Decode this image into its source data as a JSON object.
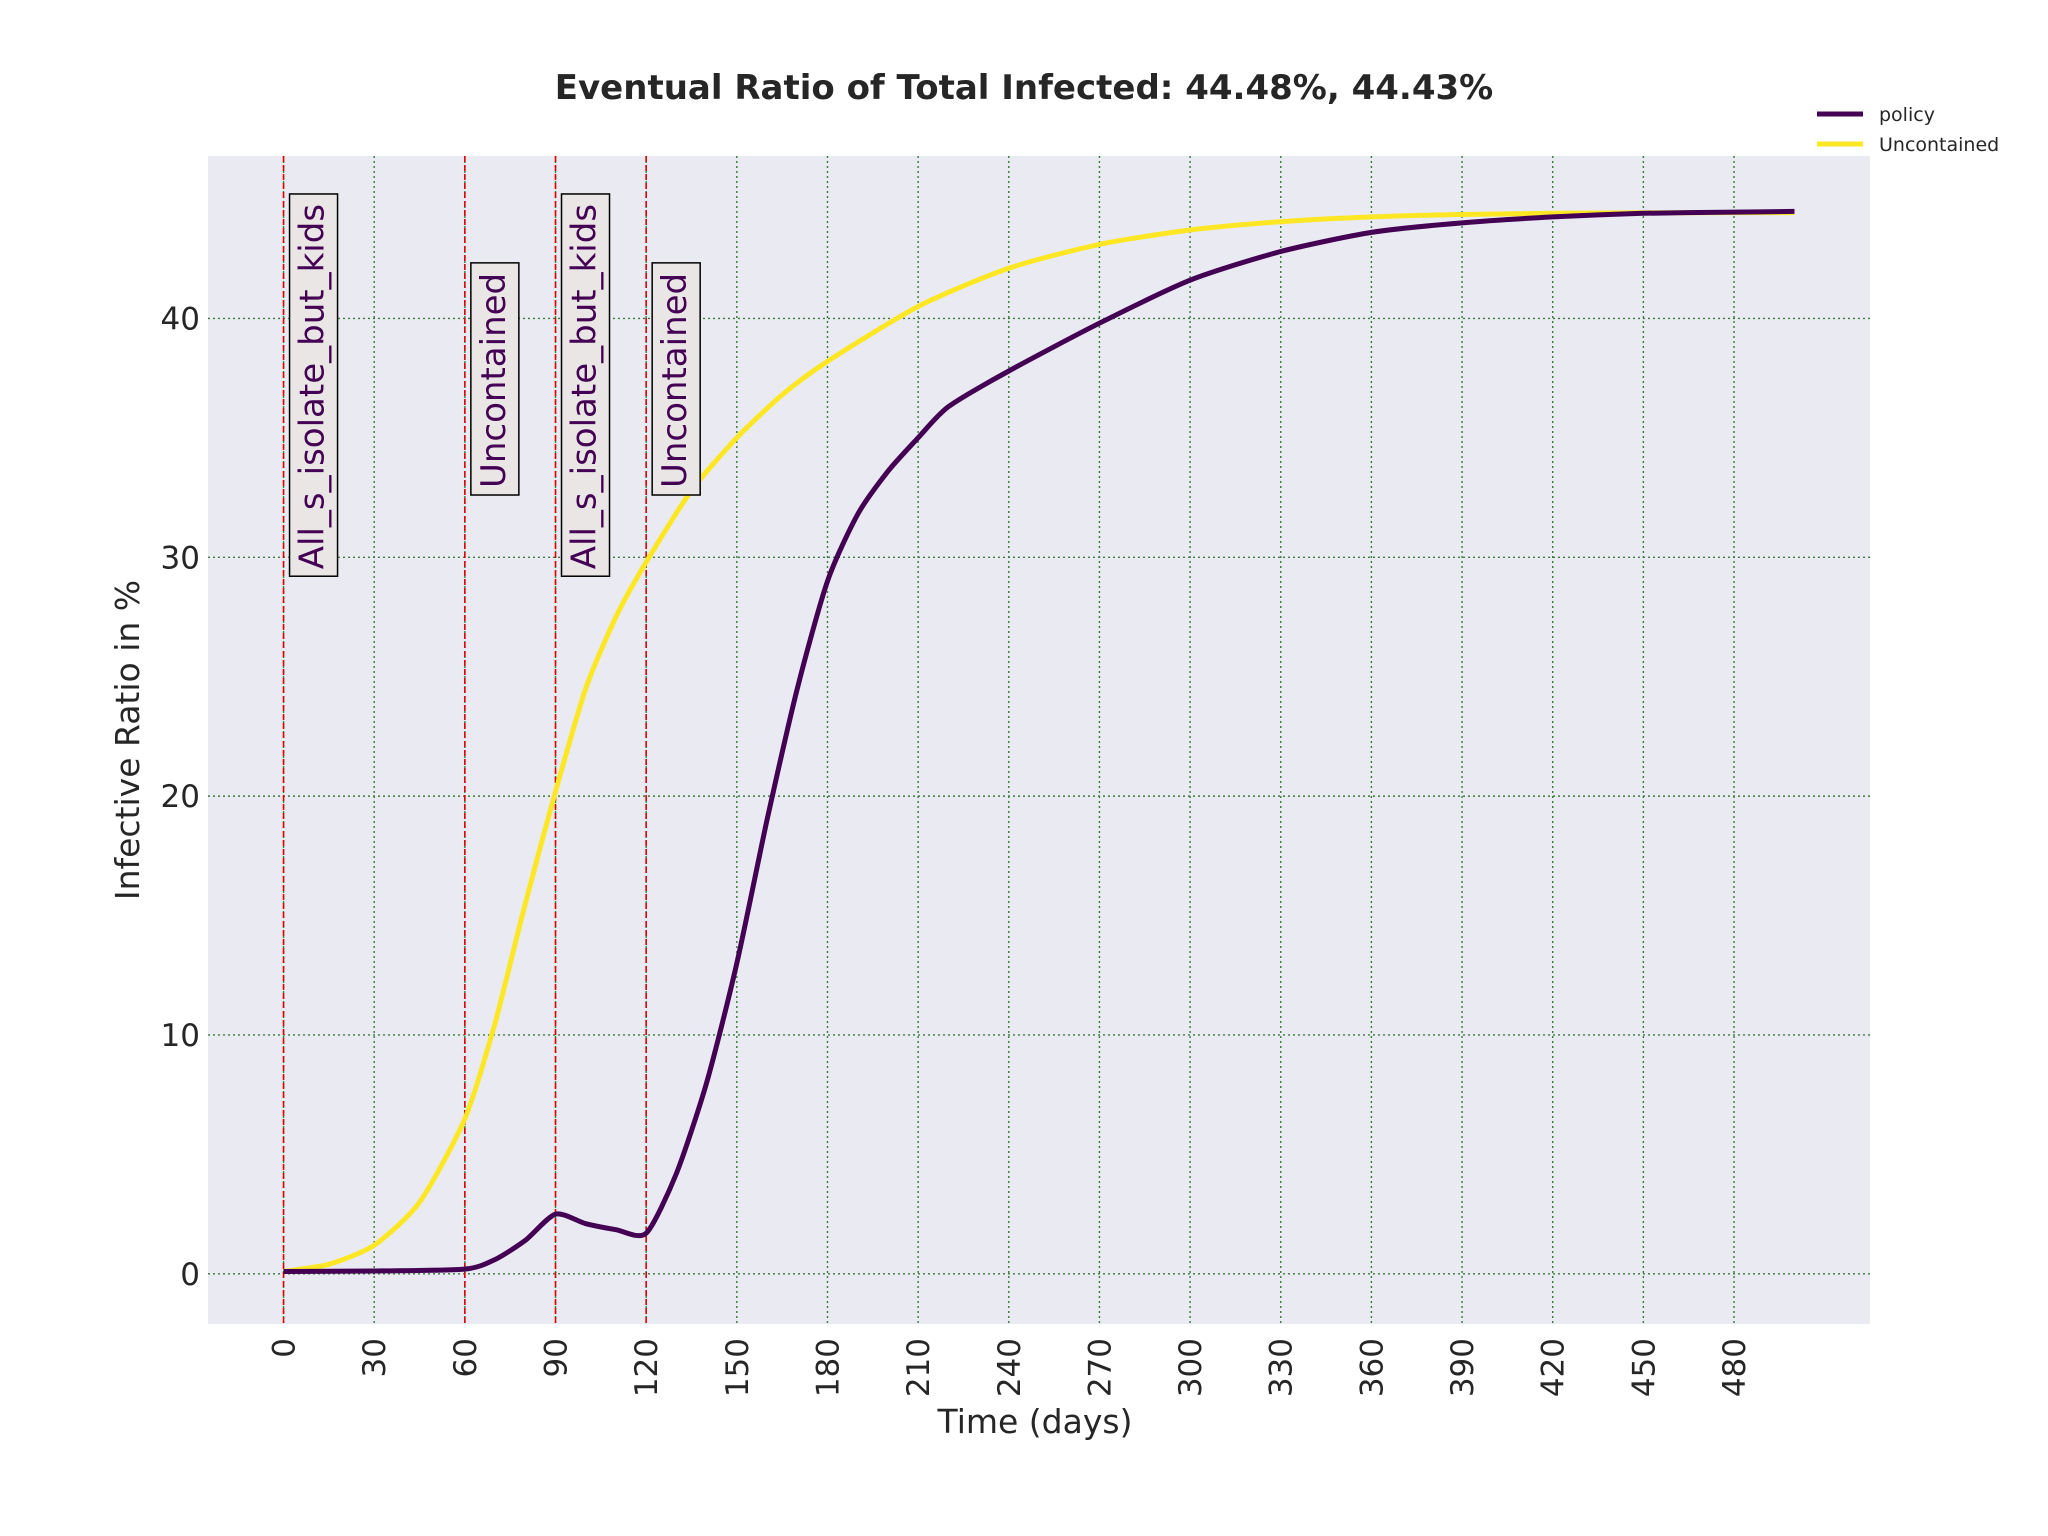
{
  "chart_data": {
    "type": "line",
    "title": "Eventual Ratio of Total Infected: 44.48%, 44.43%",
    "xlabel": "Time (days)",
    "ylabel": "Infective Ratio in %",
    "xlim": [
      -25,
      525
    ],
    "ylim": [
      -2.1,
      46.8
    ],
    "x_ticks": [
      0,
      30,
      60,
      90,
      120,
      150,
      180,
      210,
      240,
      270,
      300,
      330,
      360,
      390,
      420,
      450,
      480
    ],
    "y_ticks": [
      0,
      10,
      20,
      30,
      40
    ],
    "grid": true,
    "grid_style": "dotted",
    "legend_position": "upper-right-outside",
    "background_color": "#EAEAF2",
    "series": [
      {
        "name": "policy",
        "color": "#440154",
        "x": [
          0,
          30,
          60,
          70,
          80,
          90,
          100,
          110,
          120,
          130,
          140,
          150,
          160,
          170,
          180,
          190,
          200,
          210,
          220,
          240,
          270,
          300,
          330,
          360,
          390,
          420,
          450,
          480,
          500
        ],
        "y": [
          0.1,
          0.12,
          0.2,
          0.6,
          1.4,
          2.5,
          2.1,
          1.85,
          1.7,
          4.2,
          8.0,
          13.0,
          19.0,
          24.5,
          29.0,
          31.8,
          33.6,
          35.0,
          36.3,
          37.8,
          39.8,
          41.6,
          42.8,
          43.6,
          44.0,
          44.25,
          44.4,
          44.45,
          44.48
        ]
      },
      {
        "name": "Uncontained",
        "color": "#FDE725",
        "x": [
          0,
          15,
          30,
          45,
          60,
          70,
          80,
          90,
          100,
          110,
          120,
          135,
          150,
          165,
          180,
          210,
          240,
          270,
          300,
          330,
          360,
          390,
          420,
          450,
          480,
          500
        ],
        "y": [
          0.1,
          0.4,
          1.2,
          3.0,
          6.5,
          10.5,
          15.5,
          20.2,
          24.5,
          27.5,
          29.8,
          32.8,
          35.0,
          36.8,
          38.2,
          40.5,
          42.1,
          43.1,
          43.7,
          44.05,
          44.25,
          44.35,
          44.4,
          44.42,
          44.43,
          44.43
        ]
      }
    ],
    "vlines": [
      {
        "x": 0,
        "color": "#E00000",
        "label": "All_s_isolate_but_kids",
        "label_y": 29.5
      },
      {
        "x": 60,
        "color": "#E00000",
        "label": "Uncontained",
        "label_y": 32.9
      },
      {
        "x": 90,
        "color": "#E00000",
        "label": "All_s_isolate_but_kids",
        "label_y": 29.5
      },
      {
        "x": 120,
        "color": "#E00000",
        "label": "Uncontained",
        "label_y": 32.9
      }
    ]
  }
}
